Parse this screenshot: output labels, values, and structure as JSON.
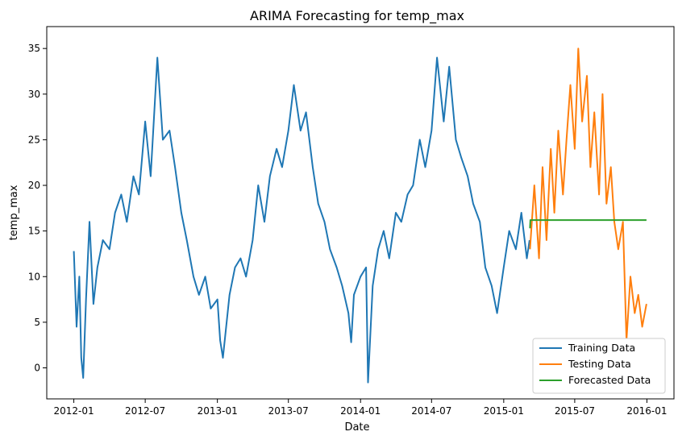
{
  "chart_data": {
    "type": "line",
    "title": "ARIMA Forecasting for temp_max",
    "xlabel": "Date",
    "ylabel": "temp_max",
    "x_ticks": [
      "2012-01",
      "2012-07",
      "2013-01",
      "2013-07",
      "2014-01",
      "2014-07",
      "2015-01",
      "2015-07",
      "2016-01"
    ],
    "y_ticks": [
      0,
      5,
      10,
      15,
      20,
      25,
      30,
      35
    ],
    "xlim": [
      "2011-10-24",
      "2016-03-10"
    ],
    "ylim": [
      -3.4,
      37.4
    ],
    "grid": false,
    "legend_position": "lower-right",
    "series": [
      {
        "name": "Training Data",
        "color": "#1f77b4",
        "x": [
          "2012-01-01",
          "2012-01-08",
          "2012-01-15",
          "2012-01-20",
          "2012-01-25",
          "2012-02-01",
          "2012-02-10",
          "2012-02-20",
          "2012-03-01",
          "2012-03-15",
          "2012-04-01",
          "2012-04-15",
          "2012-05-01",
          "2012-05-15",
          "2012-06-01",
          "2012-06-15",
          "2012-07-01",
          "2012-07-15",
          "2012-08-01",
          "2012-08-15",
          "2012-09-01",
          "2012-09-15",
          "2012-10-01",
          "2012-10-15",
          "2012-11-01",
          "2012-11-15",
          "2012-12-01",
          "2012-12-15",
          "2013-01-01",
          "2013-01-08",
          "2013-01-15",
          "2013-02-01",
          "2013-02-15",
          "2013-03-01",
          "2013-03-15",
          "2013-04-01",
          "2013-04-15",
          "2013-05-01",
          "2013-05-15",
          "2013-06-01",
          "2013-06-15",
          "2013-07-01",
          "2013-07-15",
          "2013-08-01",
          "2013-08-15",
          "2013-09-01",
          "2013-09-15",
          "2013-10-01",
          "2013-10-15",
          "2013-11-01",
          "2013-11-15",
          "2013-12-01",
          "2013-12-08",
          "2013-12-15",
          "2014-01-01",
          "2014-01-15",
          "2014-01-20",
          "2014-02-01",
          "2014-02-15",
          "2014-03-01",
          "2014-03-15",
          "2014-04-01",
          "2014-04-15",
          "2014-05-01",
          "2014-05-15",
          "2014-06-01",
          "2014-06-15",
          "2014-07-01",
          "2014-07-15",
          "2014-08-01",
          "2014-08-15",
          "2014-09-01",
          "2014-09-15",
          "2014-10-01",
          "2014-10-15",
          "2014-11-01",
          "2014-11-15",
          "2014-12-01",
          "2014-12-15",
          "2015-01-01",
          "2015-01-15",
          "2015-02-01",
          "2015-02-15",
          "2015-03-01",
          "2015-03-08"
        ],
        "y": [
          12.8,
          4.5,
          10,
          1.1,
          -1.1,
          7.5,
          16,
          7,
          11,
          14,
          13,
          17,
          19,
          16,
          21,
          19,
          27,
          21,
          34,
          25,
          26,
          22,
          17,
          14,
          10,
          8,
          10,
          6.5,
          7.5,
          3,
          1.1,
          8,
          11,
          12,
          10,
          14,
          20,
          16,
          21,
          24,
          22,
          26,
          31,
          26,
          28,
          22,
          18,
          16,
          13,
          11,
          9,
          6,
          2.8,
          8,
          10,
          11,
          -1.6,
          9,
          13,
          15,
          12,
          17,
          16,
          19,
          20,
          25,
          22,
          26,
          34,
          27,
          33,
          25,
          23,
          21,
          18,
          16,
          11,
          9,
          6,
          11,
          15,
          13,
          17,
          12,
          14
        ]
      },
      {
        "name": "Testing Data",
        "color": "#ff7f0e",
        "x": [
          "2015-03-09",
          "2015-03-20",
          "2015-04-01",
          "2015-04-10",
          "2015-04-20",
          "2015-05-01",
          "2015-05-10",
          "2015-05-20",
          "2015-06-01",
          "2015-06-10",
          "2015-06-20",
          "2015-07-01",
          "2015-07-10",
          "2015-07-20",
          "2015-08-01",
          "2015-08-10",
          "2015-08-20",
          "2015-09-01",
          "2015-09-10",
          "2015-09-20",
          "2015-10-01",
          "2015-10-10",
          "2015-10-20",
          "2015-11-01",
          "2015-11-10",
          "2015-11-20",
          "2015-12-01",
          "2015-12-10",
          "2015-12-20",
          "2015-12-31"
        ],
        "y": [
          13,
          20,
          12,
          22,
          14,
          24,
          17,
          26,
          19,
          25,
          31,
          24,
          35,
          27,
          32,
          22,
          28,
          19,
          30,
          18,
          22,
          16,
          13,
          16,
          3,
          10,
          6,
          8,
          4.5,
          7
        ]
      },
      {
        "name": "Forecasted Data",
        "color": "#2ca02c",
        "x": [
          "2015-03-09",
          "2015-03-10",
          "2015-12-31"
        ],
        "y": [
          15.3,
          16.2,
          16.2
        ]
      }
    ]
  }
}
